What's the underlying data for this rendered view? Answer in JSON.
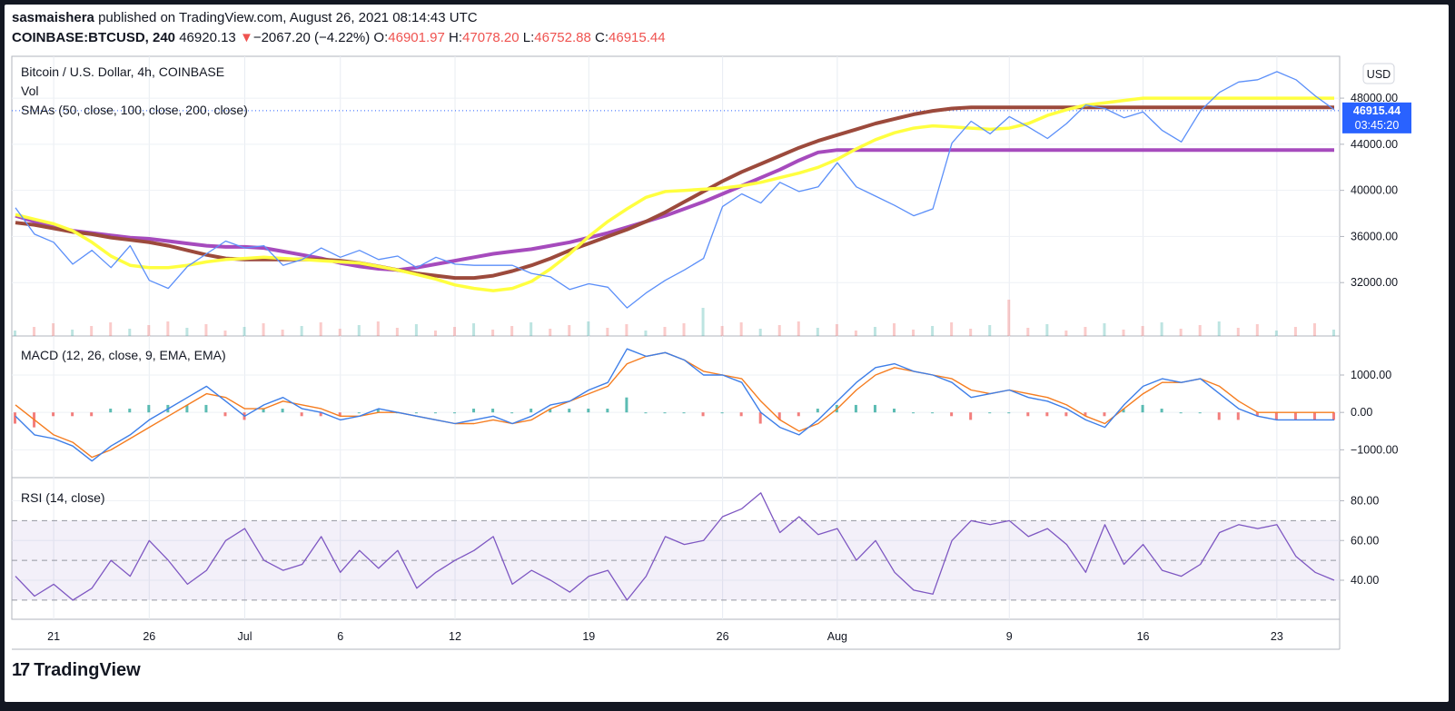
{
  "header": {
    "publisher": "sasmaishera",
    "published_text": "published on TradingView.com, August 26, 2021 08:14:43 UTC",
    "symbol": "COINBASE:BTCUSD, 240",
    "last": "46920.13",
    "change_arrow": "▼",
    "change": "−2067.20 (−4.22%)",
    "o_label": "O:",
    "o": "46901.97",
    "h_label": "H:",
    "h": "47078.20",
    "l_label": "L:",
    "l": "46752.88",
    "c_label": "C:",
    "c": "46915.44"
  },
  "colors": {
    "price": "#5b8ff9",
    "sma50": "#ffff40",
    "sma100": "#9c4a3c",
    "sma200": "#a64bbd",
    "macd": "#3d7ee8",
    "signal": "#f57c1f",
    "rsi": "#7e57c2",
    "hist_up": "#26a69a",
    "hist_dn": "#ef5350",
    "badge": "#2962ff"
  },
  "brand": {
    "logo": "17",
    "name": "TradingView"
  },
  "chart_data": [
    {
      "type": "line",
      "title": "Bitcoin / U.S. Dollar, 4h, COINBASE",
      "volume_label": "Vol",
      "overlay_label": "SMAs (50, close, 100, close, 200, close)",
      "currency_badge": "USD",
      "last_price_badge": "46915.44",
      "countdown_badge": "03:45:20",
      "ylim": [
        28000,
        51000
      ],
      "y_ticks": [
        32000,
        36000,
        40000,
        44000,
        48000
      ],
      "y_tick_labels": [
        "32000.00",
        "36000.00",
        "40000.00",
        "44000.00",
        "48000.00"
      ],
      "x_ticks": [
        2,
        7,
        12,
        17,
        22,
        27,
        32,
        37,
        42,
        47,
        52,
        57,
        62,
        67
      ],
      "x_tick_labels": [
        "21",
        "26",
        "Jul",
        "6",
        "12",
        "19",
        "26",
        "Aug",
        "9",
        "16",
        "23"
      ],
      "x_tick_days": [
        2,
        7,
        12,
        17,
        23,
        30,
        37,
        43,
        52,
        59,
        66
      ],
      "x_days": [
        0,
        1,
        2,
        3,
        4,
        5,
        6,
        7,
        8,
        9,
        10,
        11,
        12,
        13,
        14,
        15,
        16,
        17,
        18,
        19,
        20,
        21,
        22,
        23,
        24,
        25,
        26,
        27,
        28,
        29,
        30,
        31,
        32,
        33,
        34,
        35,
        36,
        37,
        38,
        39,
        40,
        41,
        42,
        43,
        44,
        45,
        46,
        47,
        48,
        49,
        50,
        51,
        52,
        53,
        54,
        55,
        56,
        57,
        58,
        59,
        60,
        61,
        62,
        63,
        64,
        65,
        66,
        67,
        68,
        69
      ],
      "series": [
        {
          "name": "Price",
          "values": [
            38500,
            36200,
            35500,
            33600,
            34800,
            33300,
            35200,
            32200,
            31500,
            33400,
            34500,
            35600,
            35000,
            35200,
            33500,
            34000,
            35000,
            34200,
            34800,
            34000,
            34300,
            33300,
            34200,
            33600,
            33500,
            33500,
            33500,
            32800,
            32500,
            31400,
            31900,
            31600,
            29800,
            31100,
            32200,
            33100,
            34100,
            38600,
            39700,
            38900,
            40700,
            39900,
            40300,
            42400,
            40300,
            39500,
            38700,
            37800,
            38400,
            44100,
            46000,
            44900,
            46400,
            45500,
            44500,
            45800,
            47400,
            47100,
            46300,
            46800,
            45200,
            44200,
            46900,
            48500,
            49400,
            49600,
            50300,
            49600,
            48200,
            47000
          ]
        },
        {
          "name": "SMA 50",
          "values": [
            37900,
            37500,
            37100,
            36500,
            35500,
            34300,
            33500,
            33300,
            33300,
            33500,
            33800,
            34000,
            34100,
            34200,
            34100,
            34000,
            33900,
            33800,
            33700,
            33400,
            33100,
            32700,
            32300,
            31800,
            31500,
            31300,
            31500,
            32100,
            33200,
            34500,
            36000,
            37300,
            38400,
            39400,
            39900,
            40000,
            40100,
            40200,
            40400,
            40700,
            41100,
            41500,
            42000,
            42700,
            43600,
            44400,
            45000,
            45400,
            45600,
            45500,
            45400,
            45300,
            45400,
            45800,
            46500,
            47000,
            47400,
            47600,
            47800,
            48000,
            48000,
            48000,
            48000,
            48000,
            48000,
            48000,
            48000,
            48000,
            48000,
            48000
          ]
        },
        {
          "name": "SMA 100",
          "values": [
            37200,
            37000,
            36700,
            36400,
            36200,
            35900,
            35700,
            35500,
            35200,
            34800,
            34400,
            34100,
            34000,
            34000,
            34000,
            34000,
            34000,
            33900,
            33700,
            33400,
            33100,
            32800,
            32600,
            32400,
            32400,
            32600,
            33000,
            33500,
            34100,
            34800,
            35400,
            36000,
            36600,
            37300,
            38100,
            39000,
            39900,
            40800,
            41600,
            42300,
            43000,
            43700,
            44300,
            44800,
            45300,
            45800,
            46200,
            46600,
            46900,
            47100,
            47200,
            47200,
            47200,
            47200,
            47200,
            47200,
            47200,
            47200,
            47200,
            47200,
            47200,
            47200,
            47200,
            47200,
            47200,
            47200,
            47200,
            47200,
            47200,
            47200
          ]
        },
        {
          "name": "SMA 200",
          "values": [
            37800,
            37300,
            36900,
            36500,
            36300,
            36100,
            35900,
            35800,
            35600,
            35400,
            35200,
            35100,
            35100,
            35000,
            34700,
            34400,
            34100,
            33700,
            33400,
            33200,
            33100,
            33300,
            33600,
            33900,
            34200,
            34500,
            34700,
            34900,
            35200,
            35500,
            35900,
            36300,
            36800,
            37300,
            37800,
            38400,
            39000,
            39700,
            40400,
            41100,
            41800,
            42600,
            43300,
            43500,
            43500,
            43500,
            43500,
            43500,
            43500,
            43500,
            43500,
            43500,
            43500,
            43500,
            43500,
            43500,
            43500,
            43500,
            43500,
            43500,
            43500,
            43500,
            43500,
            43500,
            43500,
            43500,
            43500,
            43500,
            43500,
            43500
          ]
        }
      ]
    },
    {
      "type": "line",
      "title": "MACD (12, 26, close, 9, EMA, EMA)",
      "ylim": [
        -1550,
        1850
      ],
      "y_ticks": [
        -1000,
        0,
        1000
      ],
      "y_tick_labels": [
        "−1000.00",
        "0.00",
        "1000.00"
      ],
      "series": [
        {
          "name": "MACD",
          "values": [
            -100,
            -600,
            -700,
            -900,
            -1300,
            -900,
            -600,
            -200,
            100,
            400,
            700,
            300,
            -100,
            200,
            400,
            100,
            0,
            -200,
            -100,
            100,
            0,
            -100,
            -200,
            -300,
            -200,
            -100,
            -300,
            -100,
            200,
            300,
            600,
            800,
            1700,
            1500,
            1600,
            1400,
            1000,
            1000,
            800,
            0,
            -400,
            -600,
            -200,
            300,
            800,
            1200,
            1300,
            1100,
            1000,
            800,
            400,
            500,
            600,
            400,
            300,
            100,
            -200,
            -400,
            200,
            700,
            900,
            800,
            900,
            500,
            100,
            -100,
            -200,
            -200,
            -200,
            -200
          ]
        },
        {
          "name": "Signal",
          "values": [
            200,
            -200,
            -600,
            -800,
            -1200,
            -1000,
            -700,
            -400,
            -100,
            200,
            500,
            400,
            100,
            100,
            300,
            200,
            100,
            -100,
            -100,
            0,
            0,
            -100,
            -200,
            -300,
            -300,
            -200,
            -300,
            -200,
            100,
            300,
            500,
            700,
            1300,
            1500,
            1600,
            1400,
            1100,
            1000,
            900,
            300,
            -200,
            -500,
            -300,
            100,
            600,
            1000,
            1200,
            1100,
            1000,
            900,
            600,
            500,
            600,
            500,
            400,
            200,
            -100,
            -300,
            100,
            500,
            800,
            800,
            900,
            700,
            300,
            0,
            0,
            0,
            0,
            0
          ]
        },
        {
          "name": "Histogram",
          "values": [
            -300,
            -400,
            -100,
            -100,
            -100,
            100,
            100,
            200,
            200,
            200,
            200,
            -100,
            -200,
            100,
            100,
            -100,
            -100,
            -100,
            0,
            100,
            0,
            0,
            0,
            0,
            100,
            100,
            0,
            100,
            100,
            100,
            100,
            100,
            400,
            0,
            0,
            0,
            -100,
            0,
            -100,
            -300,
            -200,
            -100,
            100,
            200,
            200,
            200,
            100,
            0,
            0,
            -100,
            -200,
            0,
            0,
            -100,
            -100,
            -100,
            -100,
            -100,
            100,
            200,
            100,
            0,
            0,
            -200,
            -200,
            -100,
            -200,
            -200,
            -200,
            -200
          ]
        }
      ]
    },
    {
      "type": "line",
      "title": "RSI (14, close)",
      "ylim": [
        24,
        88
      ],
      "y_ticks": [
        40,
        60,
        80
      ],
      "y_tick_labels": [
        "40.00",
        "60.00",
        "80.00"
      ],
      "band": [
        30,
        70
      ],
      "series": [
        {
          "name": "RSI",
          "values": [
            42,
            32,
            38,
            30,
            36,
            50,
            42,
            60,
            50,
            38,
            45,
            60,
            66,
            50,
            45,
            48,
            62,
            44,
            55,
            46,
            55,
            36,
            44,
            50,
            55,
            62,
            38,
            45,
            40,
            34,
            42,
            45,
            30,
            42,
            62,
            58,
            60,
            72,
            76,
            84,
            64,
            72,
            63,
            66,
            50,
            60,
            44,
            35,
            33,
            60,
            70,
            68,
            70,
            62,
            66,
            58,
            44,
            68,
            48,
            58,
            45,
            42,
            48,
            64,
            68,
            66,
            68,
            52,
            44,
            40
          ]
        }
      ]
    }
  ]
}
